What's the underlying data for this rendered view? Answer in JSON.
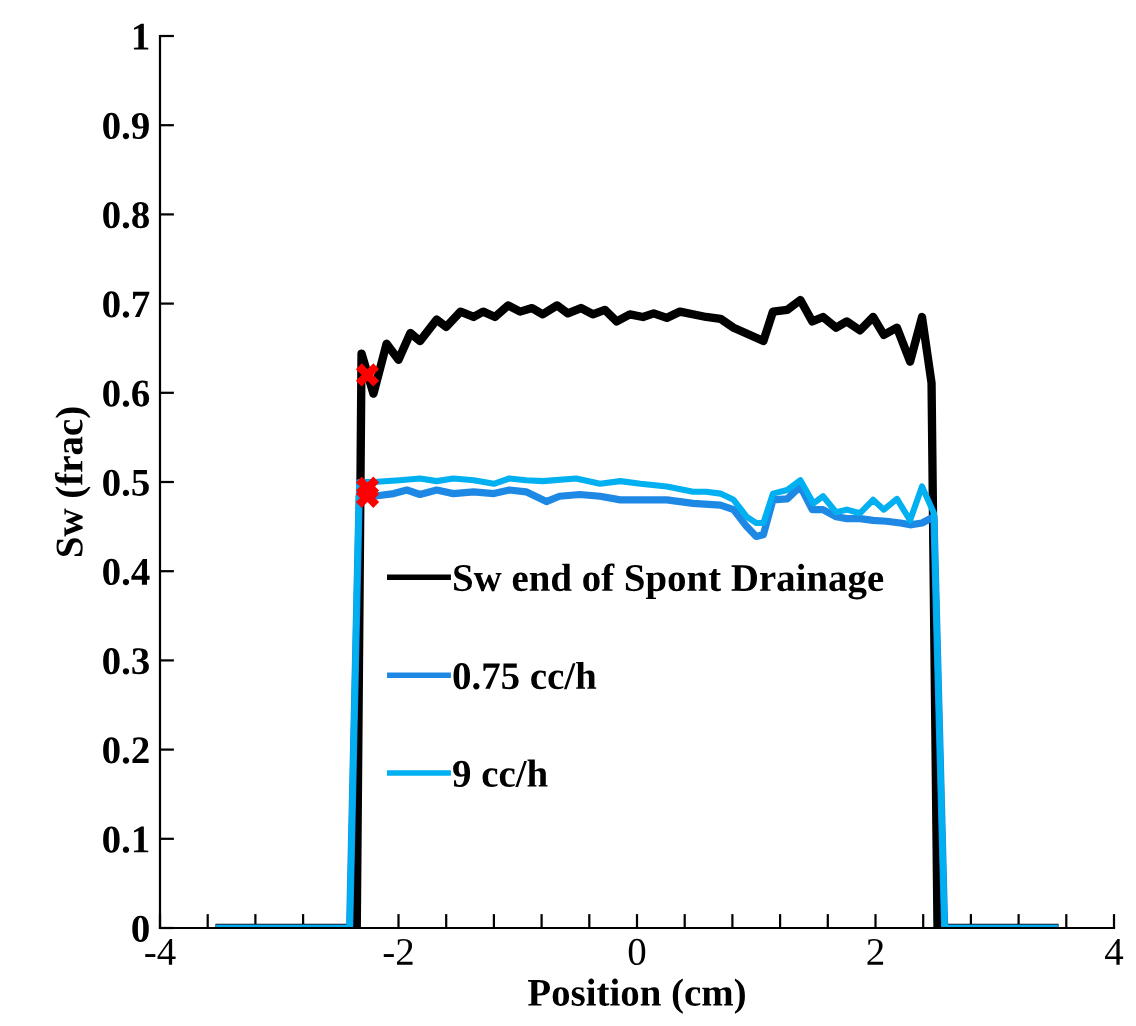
{
  "chart_data": {
    "type": "line",
    "xlabel": "Position (cm)",
    "ylabel": "Sw (frac)",
    "xlim": [
      -4,
      4
    ],
    "ylim": [
      0,
      1
    ],
    "xticks": [
      -4,
      {
        "value": -3.6,
        "label": null
      },
      {
        "value": -3.2,
        "label": null
      },
      {
        "value": -2.8,
        "label": null
      },
      {
        "value": -2.4,
        "label": null
      },
      -2,
      {
        "value": -1.6,
        "label": null
      },
      {
        "value": -1.2,
        "label": null
      },
      {
        "value": -0.8,
        "label": null
      },
      {
        "value": -0.4,
        "label": null
      },
      0,
      {
        "value": 0.4,
        "label": null
      },
      {
        "value": 0.8,
        "label": null
      },
      {
        "value": 1.2,
        "label": null
      },
      {
        "value": 1.6,
        "label": null
      },
      2,
      {
        "value": 2.4,
        "label": null
      },
      {
        "value": 2.8,
        "label": null
      },
      {
        "value": 3.2,
        "label": null
      },
      {
        "value": 3.6,
        "label": null
      },
      4
    ],
    "yticks": [
      0,
      0.1,
      0.2,
      0.3,
      0.4,
      0.5,
      0.6,
      0.7,
      0.8,
      0.9,
      1
    ],
    "grid": false,
    "legend": "bottom",
    "marker": "none",
    "line_style": "solid",
    "series": [
      {
        "name": "Sw end of Spont Drainage",
        "color": "#000000",
        "x": [
          -3.5,
          -2.35,
          -2.31,
          -2.21,
          -2.1,
          -2.0,
          -1.9,
          -1.82,
          -1.68,
          -1.6,
          -1.48,
          -1.37,
          -1.29,
          -1.19,
          -1.08,
          -0.98,
          -0.88,
          -0.79,
          -0.67,
          -0.58,
          -0.47,
          -0.37,
          -0.27,
          -0.17,
          -0.06,
          0.05,
          0.14,
          0.25,
          0.36,
          0.58,
          0.7,
          0.81,
          1.06,
          1.14,
          1.26,
          1.37,
          1.47,
          1.56,
          1.67,
          1.76,
          1.87,
          1.98,
          2.07,
          2.18,
          2.29,
          2.39,
          2.47,
          2.52,
          3.5
        ],
        "values": [
          0,
          0,
          0.644,
          0.599,
          0.655,
          0.637,
          0.667,
          0.658,
          0.682,
          0.674,
          0.691,
          0.685,
          0.691,
          0.685,
          0.698,
          0.691,
          0.695,
          0.688,
          0.698,
          0.689,
          0.695,
          0.688,
          0.693,
          0.68,
          0.688,
          0.685,
          0.689,
          0.684,
          0.691,
          0.685,
          0.683,
          0.673,
          0.658,
          0.691,
          0.693,
          0.704,
          0.68,
          0.685,
          0.673,
          0.68,
          0.67,
          0.685,
          0.665,
          0.673,
          0.635,
          0.685,
          0.611,
          0,
          0
        ]
      },
      {
        "name": "0.75 cc/h",
        "color": "#1e88e5",
        "x": [
          -3.5,
          -2.41,
          -2.33,
          -2.21,
          -2.04,
          -1.93,
          -1.82,
          -1.68,
          -1.54,
          -1.37,
          -1.2,
          -1.07,
          -0.93,
          -0.76,
          -0.65,
          -0.48,
          -0.31,
          -0.14,
          0.03,
          0.25,
          0.47,
          0.7,
          0.81,
          0.92,
          1.0,
          1.06,
          1.14,
          1.26,
          1.37,
          1.47,
          1.56,
          1.67,
          1.76,
          1.87,
          1.98,
          2.09,
          2.21,
          2.29,
          2.39,
          2.49,
          2.58,
          3.5
        ],
        "values": [
          0,
          0,
          0.484,
          0.484,
          0.487,
          0.491,
          0.486,
          0.491,
          0.487,
          0.489,
          0.487,
          0.491,
          0.489,
          0.478,
          0.484,
          0.486,
          0.484,
          0.48,
          0.48,
          0.48,
          0.476,
          0.474,
          0.469,
          0.45,
          0.439,
          0.441,
          0.48,
          0.481,
          0.495,
          0.469,
          0.469,
          0.461,
          0.459,
          0.459,
          0.457,
          0.456,
          0.454,
          0.452,
          0.454,
          0.461,
          0,
          0
        ]
      },
      {
        "name": "9 cc/h",
        "color": "#00b0f0",
        "x": [
          -3.5,
          -2.41,
          -2.33,
          -2.21,
          -1.99,
          -1.82,
          -1.68,
          -1.54,
          -1.37,
          -1.2,
          -1.07,
          -0.93,
          -0.79,
          -0.51,
          -0.31,
          -0.14,
          0.03,
          0.25,
          0.47,
          0.58,
          0.7,
          0.81,
          0.92,
          1.0,
          1.06,
          1.14,
          1.26,
          1.37,
          1.48,
          1.56,
          1.67,
          1.76,
          1.87,
          1.98,
          2.07,
          2.18,
          2.29,
          2.39,
          2.49,
          2.58,
          3.5
        ],
        "values": [
          0,
          0,
          0.5,
          0.5,
          0.502,
          0.504,
          0.501,
          0.504,
          0.502,
          0.498,
          0.504,
          0.502,
          0.501,
          0.504,
          0.498,
          0.501,
          0.498,
          0.495,
          0.489,
          0.489,
          0.487,
          0.48,
          0.461,
          0.454,
          0.454,
          0.487,
          0.491,
          0.502,
          0.476,
          0.484,
          0.466,
          0.469,
          0.465,
          0.48,
          0.469,
          0.481,
          0.457,
          0.495,
          0.465,
          0,
          0
        ]
      },
      {
        "type": "scatter",
        "color": "#ff0000",
        "marker": "cross",
        "x": [
          -2.26,
          -2.26,
          -2.26
        ],
        "values": [
          0.62,
          0.493,
          0.484
        ]
      }
    ]
  }
}
